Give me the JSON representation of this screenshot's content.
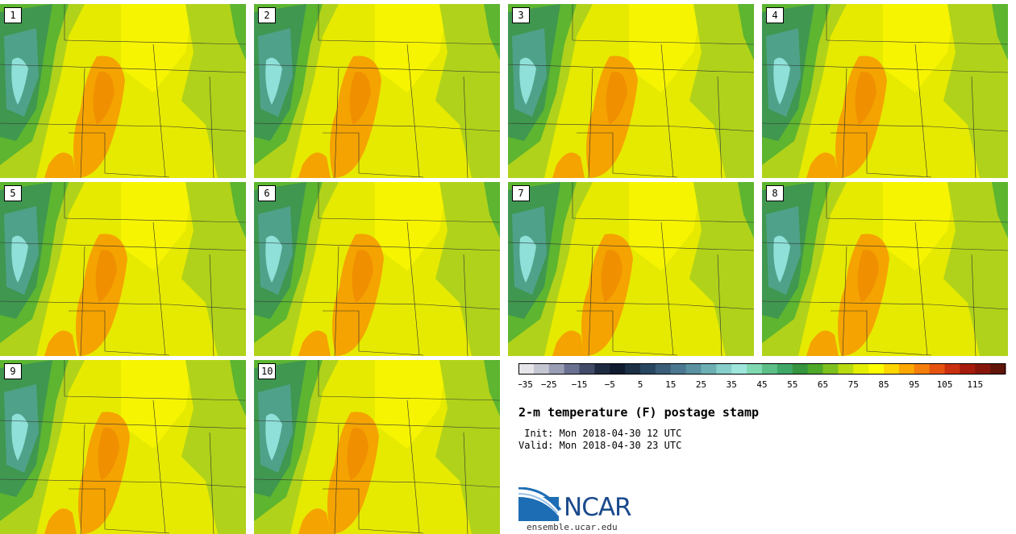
{
  "panels": [
    {
      "label": "1"
    },
    {
      "label": "2"
    },
    {
      "label": "3"
    },
    {
      "label": "4"
    },
    {
      "label": "5"
    },
    {
      "label": "6"
    },
    {
      "label": "7"
    },
    {
      "label": "8"
    },
    {
      "label": "9"
    },
    {
      "label": "10"
    }
  ],
  "colorbar": {
    "tick_labels": [
      "−35",
      "−25",
      "−15",
      "−5",
      "5",
      "15",
      "25",
      "35",
      "45",
      "55",
      "65",
      "75",
      "85",
      "95",
      "105",
      "115"
    ],
    "colors": [
      "#e6e6ea",
      "#c4c6d2",
      "#9a9eb4",
      "#6a7090",
      "#414a66",
      "#1e2a40",
      "#0f1a2e",
      "#1b2f45",
      "#284660",
      "#3a5e78",
      "#4b7890",
      "#5a92a2",
      "#6cb0b4",
      "#86cfca",
      "#9ee6dc",
      "#7fd8b0",
      "#5cbf88",
      "#3fa867",
      "#36953e",
      "#4ea82a",
      "#7dc120",
      "#b8da10",
      "#e4ee00",
      "#fdfd00",
      "#fdd600",
      "#fca800",
      "#f57e0c",
      "#e65310",
      "#c9300e",
      "#a61b0c",
      "#86160c",
      "#611509"
    ]
  },
  "title": "2-m temperature (F) postage stamp",
  "init_text": " Init: Mon 2018-04-30 12 UTC",
  "valid_text": "Valid: Mon 2018-04-30 23 UTC",
  "logo": {
    "name": "NCAR",
    "url": "ensemble.ucar.edu"
  },
  "map_colors": {
    "yellow": "#e6ea00",
    "bright_yellow": "#f6f400",
    "orange": "#f5a300",
    "dark_orange": "#f09000",
    "green_light": "#b0d21a",
    "green": "#5db530",
    "green_dark": "#3f9750",
    "teal": "#4fa289",
    "cyan": "#8ee0d8"
  }
}
